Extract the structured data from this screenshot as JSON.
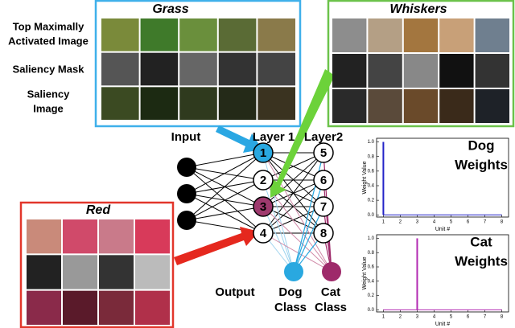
{
  "panels": [
    {
      "title": "Grass"
    },
    {
      "title": "Whiskers"
    },
    {
      "title": "Red"
    }
  ],
  "row_labels": [
    [
      "Top Maximally",
      "Activated Image"
    ],
    [
      "Saliency Mask"
    ],
    [
      "Saliency",
      "Image"
    ]
  ],
  "network": {
    "input_label": "Input",
    "layer1_label": "Layer 1",
    "layer2_label": "Layer2",
    "output_label": "Output",
    "layer1_units": [
      "1",
      "2",
      "3",
      "4"
    ],
    "layer2_units": [
      "5",
      "6",
      "7",
      "8"
    ],
    "outputs": [
      [
        "Dog",
        "Class"
      ],
      [
        "Cat",
        "Class"
      ]
    ]
  },
  "weight_charts": [
    {
      "type": "bar",
      "title": [
        "Dog",
        "Weights"
      ],
      "color": "#2323c8",
      "x": [
        1,
        2,
        3,
        4,
        5,
        6,
        7,
        8
      ],
      "values": [
        1.0,
        0,
        0,
        0,
        0,
        0,
        0,
        0
      ],
      "xlim": [
        0.6,
        8.4
      ],
      "xticks": [
        1,
        2,
        3,
        4,
        5,
        6,
        7,
        8
      ],
      "ylim": [
        -0.03,
        1.05
      ],
      "yticks": [
        {
          "value": 0,
          "label": "0.0"
        },
        {
          "value": 0.2,
          "label": "0.2"
        },
        {
          "value": 0.4,
          "label": "0.4"
        },
        {
          "value": 0.6,
          "label": "0.6"
        },
        {
          "value": 0.8,
          "label": "0.8"
        },
        {
          "value": 1.0,
          "label": "1.0"
        }
      ],
      "xlabel": "Unit #",
      "ylabel": "Weight Value"
    },
    {
      "type": "bar",
      "title": [
        "Cat",
        "Weights"
      ],
      "color": "#b22ab2",
      "x": [
        1,
        2,
        3,
        4,
        5,
        6,
        7,
        8
      ],
      "values": [
        0,
        0,
        1.0,
        0,
        0,
        0,
        0,
        0
      ],
      "xlim": [
        0.6,
        8.4
      ],
      "xticks": [
        1,
        2,
        3,
        4,
        5,
        6,
        7,
        8
      ],
      "ylim": [
        -0.03,
        1.05
      ],
      "yticks": [
        {
          "value": 0,
          "label": "0.0"
        },
        {
          "value": 0.2,
          "label": "0.2"
        },
        {
          "value": 0.4,
          "label": "0.4"
        },
        {
          "value": 0.6,
          "label": "0.6"
        },
        {
          "value": 0.8,
          "label": "0.8"
        },
        {
          "value": 1.0,
          "label": "1.0"
        }
      ],
      "xlabel": "Unit #",
      "ylabel": "Weight Value"
    }
  ]
}
